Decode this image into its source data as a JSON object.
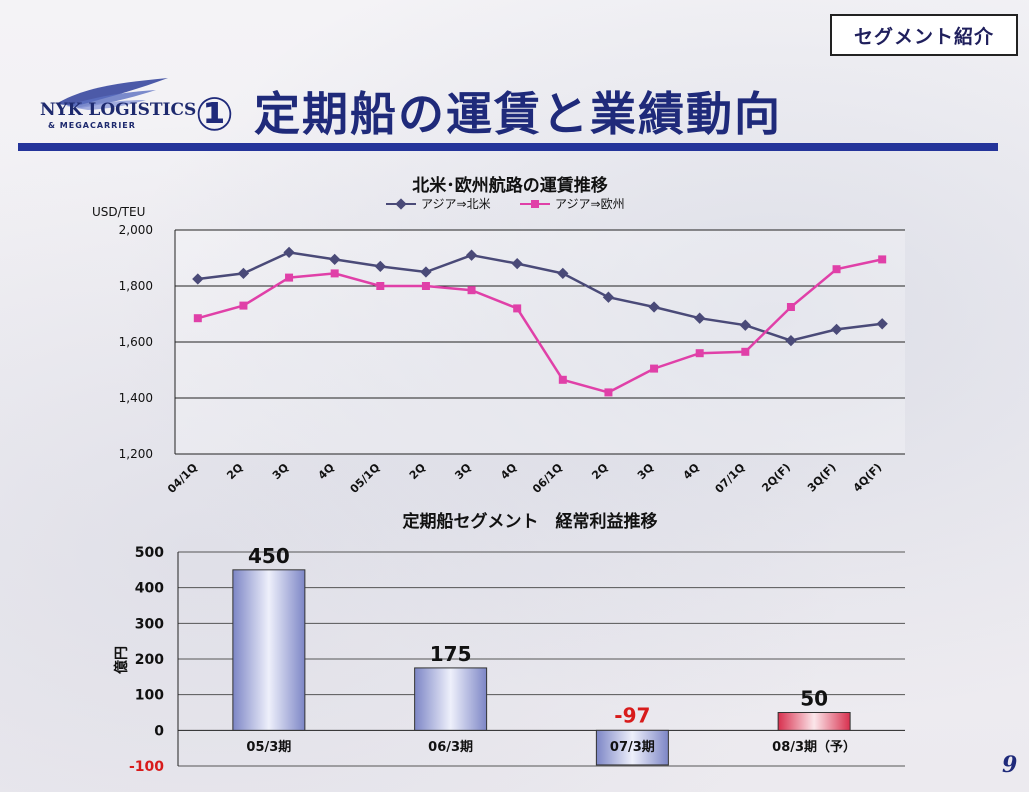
{
  "header": {
    "badge": "セグメント紹介",
    "title": "① 定期船の運賃と業績動向",
    "logo_line1": "NYK LOGISTICS",
    "logo_line2": "& MEGACARRIER"
  },
  "footer": {
    "page_number": "9"
  },
  "colors": {
    "rule": "#24349a",
    "series_north_america": "#4a4a78",
    "series_europe": "#e040a8",
    "bar_positive": "#9da6d6",
    "bar_forecast": "#e04060",
    "negative_label": "#d81b1b"
  },
  "chart_data": [
    {
      "type": "line",
      "title": "北米･欧州航路の運賃推移",
      "ylabel": "USD/TEU",
      "categories": [
        "04/1Q",
        "2Q",
        "3Q",
        "4Q",
        "05/1Q",
        "2Q",
        "3Q",
        "4Q",
        "06/1Q",
        "2Q",
        "3Q",
        "4Q",
        "07/1Q",
        "2Q(F)",
        "3Q(F)",
        "4Q(F)"
      ],
      "ylim": [
        1200,
        2000
      ],
      "yticks": [
        1200,
        1400,
        1600,
        1800,
        2000
      ],
      "ytick_labels": [
        "1,200",
        "1,400",
        "1,600",
        "1,800",
        "2,000"
      ],
      "grid": true,
      "legend": "top",
      "series": [
        {
          "name": "アジア⇒北米",
          "marker": "diamond",
          "values": [
            1825,
            1845,
            1920,
            1895,
            1870,
            1850,
            1910,
            1880,
            1845,
            1760,
            1725,
            1685,
            1660,
            1605,
            1645,
            1665
          ]
        },
        {
          "name": "アジア⇒欧州",
          "marker": "square",
          "values": [
            1685,
            1730,
            1830,
            1845,
            1800,
            1800,
            1785,
            1720,
            1465,
            1420,
            1505,
            1560,
            1565,
            1725,
            1860,
            1895
          ]
        }
      ]
    },
    {
      "type": "bar",
      "title": "定期船セグメント　経常利益推移",
      "ylabel": "億円",
      "categories": [
        "05/3期",
        "06/3期",
        "07/3期",
        "08/3期（予）"
      ],
      "values": [
        450,
        175,
        -97,
        50
      ],
      "value_labels": [
        "450",
        "175",
        "-97",
        "50"
      ],
      "ylim": [
        -100,
        500
      ],
      "yticks": [
        -100,
        0,
        100,
        200,
        300,
        400,
        500
      ],
      "grid": true
    }
  ]
}
